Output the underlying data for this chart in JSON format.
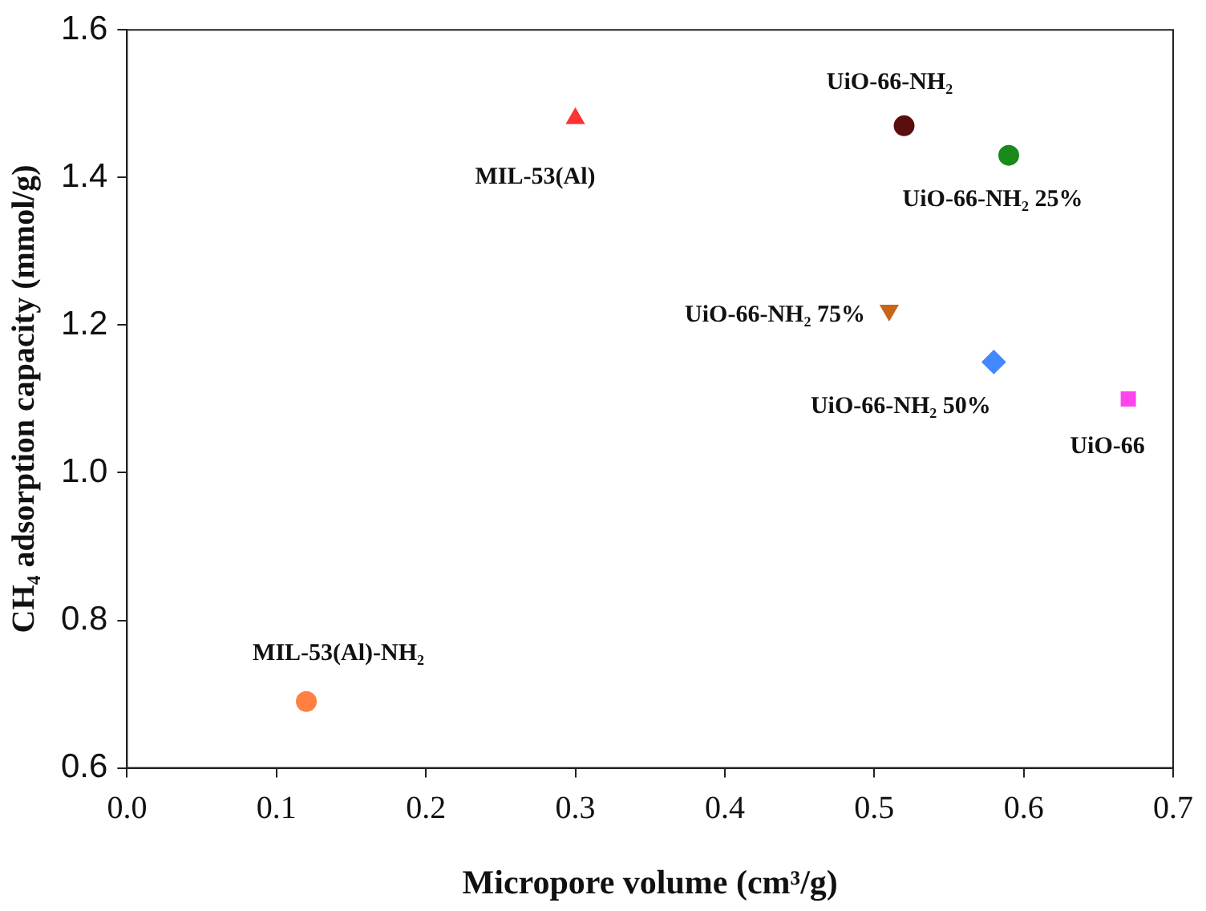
{
  "chart_data": {
    "type": "scatter",
    "xlabel": "Micropore volume (cm³/g)",
    "ylabel": "CH₄ adsorption capacity (mmol/g)",
    "xlim": [
      0,
      0.7
    ],
    "xticks": [
      {
        "value": 0,
        "label": "0.0"
      },
      0.1,
      0.2,
      0.3,
      0.4,
      0.5,
      0.6,
      0.7
    ],
    "ylim": [
      0.6,
      1.6
    ],
    "yticks": [
      0.6,
      0.8,
      {
        "value": 1,
        "label": "1.0"
      },
      1.2,
      1.4,
      1.6
    ],
    "grid": false,
    "legend": false,
    "series": [
      {
        "name": "MIL-53(Al)",
        "color": "#ff3333",
        "marker": "triangle",
        "x": [
          0.3
        ],
        "values": [
          1.48
        ]
      },
      {
        "name": "UiO-66-NH₂",
        "color": "#5a0f0f",
        "marker": "circle",
        "x": [
          0.52
        ],
        "values": [
          1.47
        ]
      },
      {
        "name": "UiO-66-NH₂ 25%",
        "color": "#1a8a1a",
        "marker": "circle",
        "x": [
          0.59
        ],
        "values": [
          1.43
        ]
      },
      {
        "name": "UiO-66-NH₂ 75%",
        "color": "#c8661a",
        "marker": "triangle-down",
        "x": [
          0.51
        ],
        "values": [
          1.22
        ]
      },
      {
        "name": "UiO-66-NH₂ 50%",
        "color": "#4488ff",
        "marker": "diamond",
        "x": [
          0.58
        ],
        "values": [
          1.15
        ]
      },
      {
        "name": "UiO-66",
        "color": "#ff44ee",
        "marker": "square",
        "x": [
          0.67
        ],
        "values": [
          1.1
        ]
      },
      {
        "name": "MIL-53(Al)-NH₂",
        "color": "#ff8040",
        "marker": "circle",
        "x": [
          0.12
        ],
        "values": [
          0.69
        ]
      }
    ]
  }
}
